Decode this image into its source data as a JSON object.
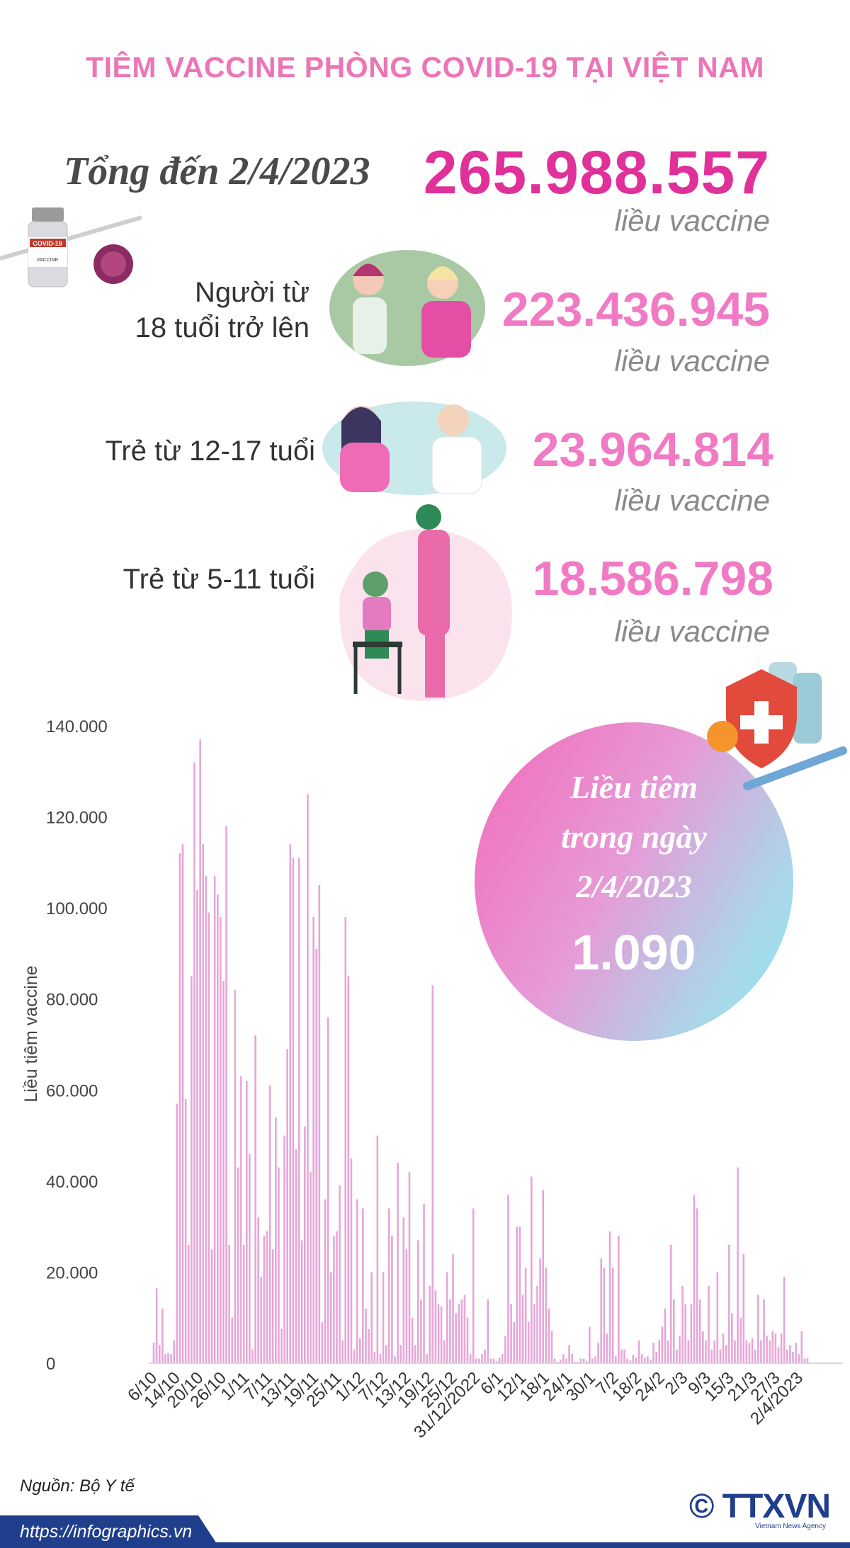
{
  "title": "TIÊM VACCINE PHÒNG COVID-19 TẠI VIỆT NAM",
  "summary": {
    "total_label": "Tổng đến 2/4/2023",
    "total_value": "265.988.557",
    "unit": "liều vaccine",
    "groups": [
      {
        "label_line1": "Người từ",
        "label_line2": "18 tuổi trở lên",
        "value": "223.436.945"
      },
      {
        "label_line1": "Trẻ từ 12-17 tuổi",
        "label_line2": "",
        "value": "23.964.814"
      },
      {
        "label_line1": "Trẻ từ 5-11 tuổi",
        "label_line2": "",
        "value": "18.586.798"
      }
    ]
  },
  "highlight": {
    "line1": "Liều tiêm",
    "line2": "trong ngày",
    "line3": "2/4/2023",
    "value": "1.090"
  },
  "colors": {
    "title": "#ec75b7",
    "total": "#e0309a",
    "group_value": "#f07ac4",
    "bar": "#e7a6d8",
    "footer": "#1f3e8c"
  },
  "chart_data": {
    "type": "bar",
    "ylabel": "Liều tiêm vaccine",
    "xlabel": "",
    "ylim": [
      0,
      140000
    ],
    "y_ticks": [
      "0",
      "20.000",
      "40.000",
      "60.000",
      "80.000",
      "100.000",
      "120.000",
      "140.000"
    ],
    "x_tick_labels": [
      "6/10",
      "14/10",
      "20/10",
      "26/10",
      "1/11",
      "7/11",
      "13/11",
      "19/11",
      "25/11",
      "1/12",
      "7/12",
      "13/12",
      "19/12",
      "25/12",
      "31/12/2022",
      "6/1",
      "12/1",
      "18/1",
      "24/1",
      "30/1",
      "7/2",
      "18/2",
      "24/2",
      "2/3",
      "9/3",
      "15/3",
      "21/3",
      "27/3",
      "2/4/2023"
    ],
    "values": [
      4500,
      16500,
      4000,
      12000,
      2000,
      2200,
      2000,
      5000,
      57000,
      112000,
      114000,
      58000,
      26000,
      85000,
      132000,
      104000,
      137000,
      114000,
      107000,
      99000,
      25000,
      107000,
      103000,
      98000,
      84000,
      118000,
      26000,
      10000,
      82000,
      43000,
      63000,
      26000,
      62000,
      46000,
      3000,
      72000,
      32000,
      19000,
      28000,
      29000,
      61000,
      25000,
      54000,
      43000,
      7500,
      50000,
      69000,
      114000,
      111000,
      47000,
      111000,
      27000,
      52000,
      125000,
      42000,
      98000,
      91000,
      105000,
      9000,
      36000,
      76000,
      20000,
      28000,
      29000,
      39000,
      5000,
      98000,
      85000,
      45000,
      3000,
      36000,
      5500,
      34000,
      12000,
      7500,
      20000,
      2500,
      50000,
      2000,
      20000,
      4000,
      34000,
      28000,
      1500,
      44000,
      4000,
      32000,
      25000,
      42000,
      10000,
      4000,
      27000,
      14000,
      35000,
      2000,
      17000,
      83000,
      16000,
      13000,
      12500,
      5000,
      20000,
      14000,
      24000,
      11000,
      13000,
      14000,
      15000,
      10000,
      2000,
      34000,
      1000,
      1000,
      2000,
      3000,
      14000,
      1000,
      1000,
      500,
      1200,
      2000,
      6000,
      37000,
      13000,
      9000,
      30000,
      30000,
      15000,
      21000,
      9000,
      41000,
      13000,
      17000,
      23000,
      38000,
      21000,
      12000,
      7000,
      1000,
      300,
      800,
      2000,
      1000,
      4000,
      2000,
      300,
      300,
      1000,
      1000,
      500,
      8000,
      1000,
      1500,
      4500,
      23000,
      21000,
      6500,
      29000,
      21000,
      1500,
      28000,
      3000,
      3000,
      1000,
      600,
      1800,
      1200,
      5000,
      2000,
      1200,
      1500,
      800,
      4500,
      2500,
      5000,
      8000,
      12000,
      5000,
      26000,
      14000,
      3000,
      6000,
      17000,
      13000,
      5000,
      13000,
      37000,
      34000,
      14000,
      7000,
      5000,
      17000,
      3000,
      5000,
      20000,
      3000,
      6500,
      4000,
      26000,
      11000,
      5000,
      43000,
      10000,
      24000,
      5000,
      4500,
      5500,
      3000,
      15000,
      5000,
      14000,
      6000,
      5000,
      7000,
      6500,
      3500,
      6500,
      19000,
      3000,
      4000,
      2500,
      4500,
      2000,
      7000,
      1000,
      1090
    ]
  },
  "source": "Nguồn: Bộ Y tế",
  "url": "https://infographics.vn",
  "logo": {
    "mark": "© TTXVN",
    "sub": "Vietnam News Agency"
  }
}
